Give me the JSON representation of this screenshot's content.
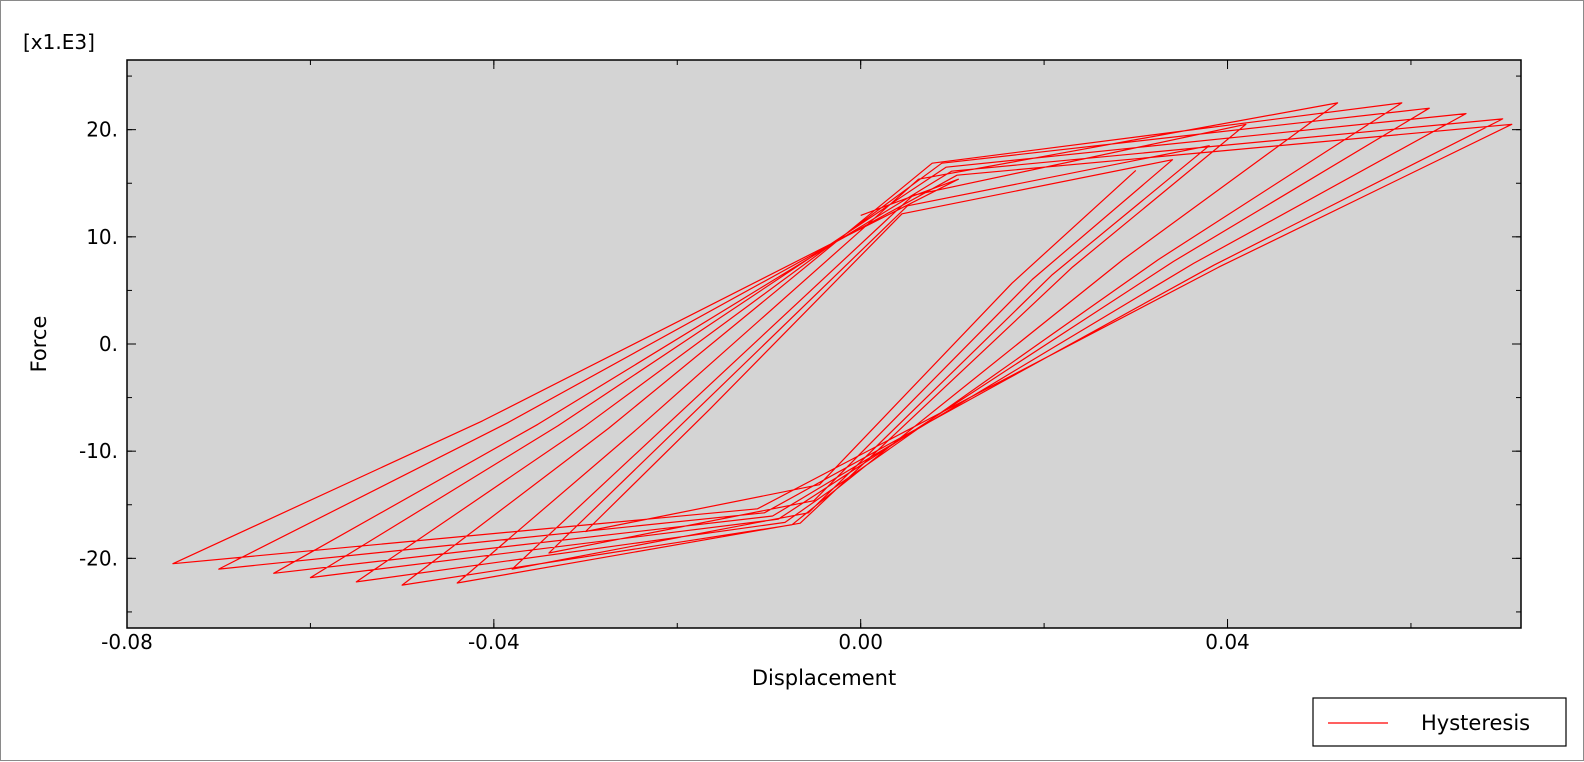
{
  "chart_data": {
    "type": "line",
    "xlabel": "Displacement",
    "ylabel": "Force",
    "y_multiplier": "[x1.E3]",
    "xlim": [
      -0.08,
      0.072
    ],
    "ylim": [
      -26.5,
      26.5
    ],
    "x_ticks": [
      -0.08,
      -0.04,
      0.0,
      0.04
    ],
    "x_tick_labels": [
      "-0.08",
      "-0.04",
      "0.00",
      "0.04"
    ],
    "y_ticks": [
      -20,
      -10,
      0,
      10,
      20
    ],
    "y_tick_labels": [
      "-20.",
      "-10.",
      "0.",
      "10.",
      "20."
    ],
    "plot_background": "#d4d4d4",
    "legend": {
      "position": "bottom-right",
      "entries": [
        {
          "label": "Hysteresis",
          "color": "#ff0000"
        }
      ]
    },
    "series": [
      {
        "name": "Hysteresis",
        "color": "#ff0000",
        "loops": [
          {
            "xmax": 0.03,
            "ymax": 16.2,
            "xmin": -0.03,
            "ymin": -17.5
          },
          {
            "xmax": 0.034,
            "ymax": 17.2,
            "xmin": -0.034,
            "ymin": -19.5
          },
          {
            "xmax": 0.038,
            "ymax": 18.5,
            "xmin": -0.038,
            "ymin": -21.0
          },
          {
            "xmax": 0.042,
            "ymax": 20.5,
            "xmin": -0.044,
            "ymin": -22.3
          },
          {
            "xmax": 0.052,
            "ymax": 22.5,
            "xmin": -0.05,
            "ymin": -22.5
          },
          {
            "xmax": 0.059,
            "ymax": 22.5,
            "xmin": -0.055,
            "ymin": -22.2
          },
          {
            "xmax": 0.062,
            "ymax": 22.0,
            "xmin": -0.06,
            "ymin": -21.8
          },
          {
            "xmax": 0.066,
            "ymax": 21.5,
            "xmin": -0.064,
            "ymin": -21.4
          },
          {
            "xmax": 0.07,
            "ymax": 21.0,
            "xmin": -0.07,
            "ymin": -21.0
          },
          {
            "xmax": 0.071,
            "ymax": 20.5,
            "xmin": -0.075,
            "ymin": -20.5
          }
        ],
        "end_point": {
          "x": 0.0,
          "y": 12.0
        }
      }
    ]
  }
}
